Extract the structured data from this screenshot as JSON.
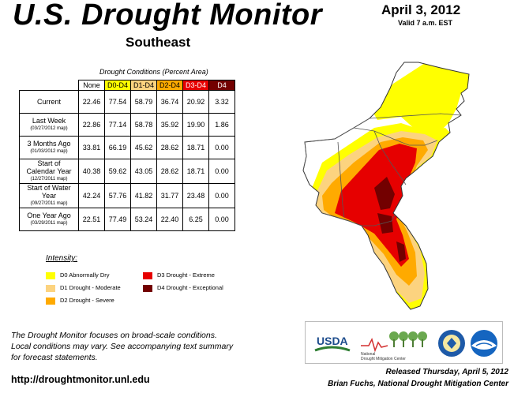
{
  "header": {
    "title": "U.S. Drought Monitor",
    "region": "Southeast",
    "date": "April 3, 2012",
    "valid": "Valid 7 a.m. EST"
  },
  "table": {
    "caption": "Drought Conditions (Percent Area)",
    "columns": [
      "None",
      "D0-D4",
      "D1-D4",
      "D2-D4",
      "D3-D4",
      "D4"
    ],
    "column_colors": [
      "#ffffff",
      "#ffff00",
      "#fcd37f",
      "#ffaa00",
      "#e60000",
      "#730000"
    ],
    "column_text_colors": [
      "#000000",
      "#000000",
      "#000000",
      "#000000",
      "#ffffff",
      "#ffffff"
    ],
    "rows": [
      {
        "label": "Current",
        "sublabel": "",
        "values": [
          "22.46",
          "77.54",
          "58.79",
          "36.74",
          "20.92",
          "3.32"
        ]
      },
      {
        "label": "Last Week",
        "sublabel": "(03/27/2012 map)",
        "values": [
          "22.86",
          "77.14",
          "58.78",
          "35.92",
          "19.90",
          "1.86"
        ]
      },
      {
        "label": "3 Months Ago",
        "sublabel": "(01/03/2012 map)",
        "values": [
          "33.81",
          "66.19",
          "45.62",
          "28.62",
          "18.71",
          "0.00"
        ]
      },
      {
        "label": "Start of Calendar Year",
        "sublabel": "(12/27/2011 map)",
        "values": [
          "40.38",
          "59.62",
          "43.05",
          "28.62",
          "18.71",
          "0.00"
        ]
      },
      {
        "label": "Start of Water Year",
        "sublabel": "(09/27/2011 map)",
        "values": [
          "42.24",
          "57.76",
          "41.82",
          "31.77",
          "23.48",
          "0.00"
        ]
      },
      {
        "label": "One Year Ago",
        "sublabel": "(03/29/2011 map)",
        "values": [
          "22.51",
          "77.49",
          "53.24",
          "22.40",
          "6.25",
          "0.00"
        ]
      }
    ]
  },
  "legend": {
    "title": "Intensity:",
    "items": [
      {
        "label": "D0 Abnormally Dry",
        "color": "#ffff00"
      },
      {
        "label": "D1 Drought - Moderate",
        "color": "#fcd37f"
      },
      {
        "label": "D2 Drought - Severe",
        "color": "#ffaa00"
      },
      {
        "label": "D3 Drought - Extreme",
        "color": "#e60000"
      },
      {
        "label": "D4 Drought - Exceptional",
        "color": "#730000"
      }
    ]
  },
  "footer": {
    "note_lines": [
      "The Drought Monitor focuses on broad-scale conditions.",
      "Local conditions may vary. See accompanying text summary",
      "for forecast statements."
    ],
    "url": "http://droughtmonitor.unl.edu",
    "released": "Released Thursday, April 5, 2012",
    "author": "Brian Fuchs, National Drought Mitigation Center"
  },
  "logos": {
    "usda": "USDA",
    "ndmc_line1": "National",
    "ndmc_line2": "Drought Mitigation Center",
    "icons": [
      "usda-logo",
      "ndmc-logo",
      "commerce-seal",
      "noaa-logo"
    ]
  }
}
